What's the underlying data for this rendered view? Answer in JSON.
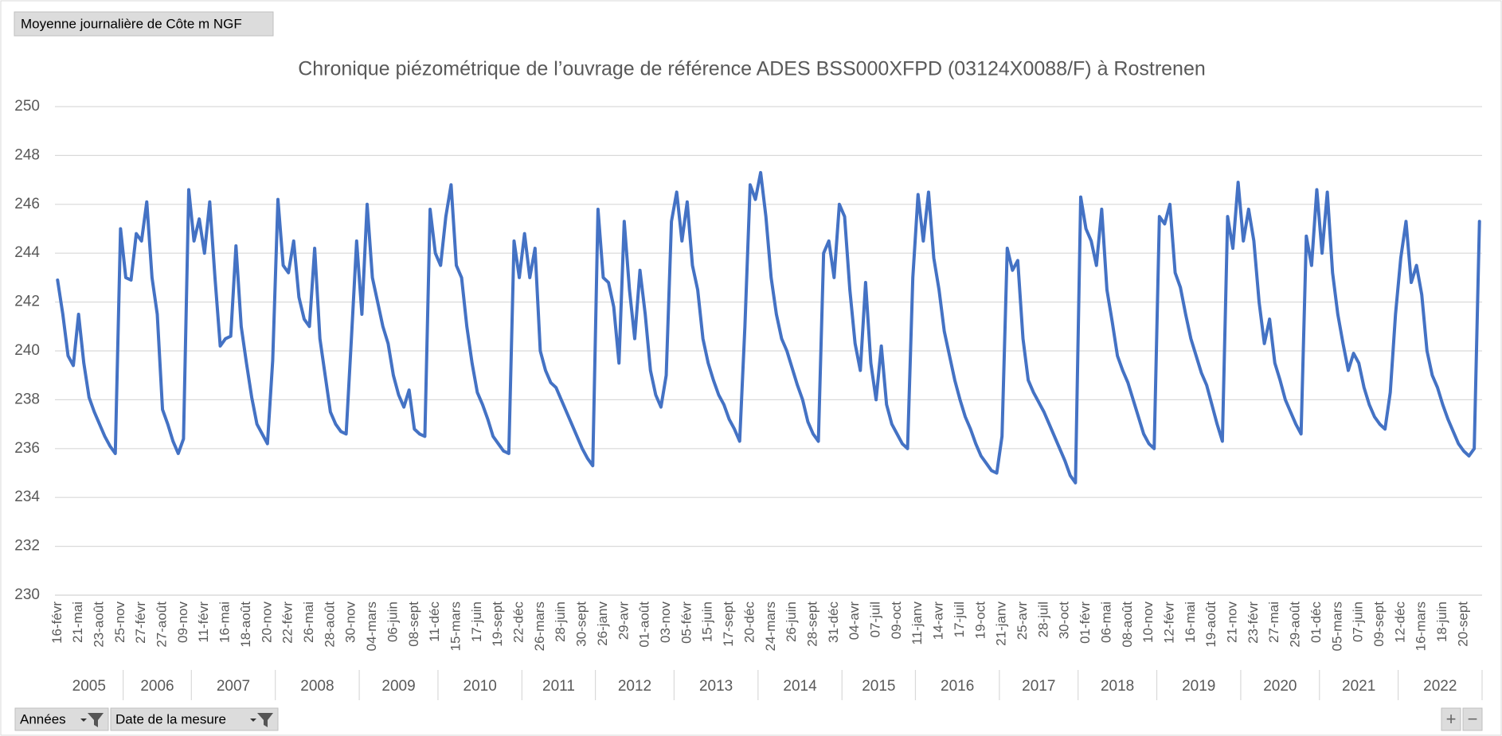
{
  "ui": {
    "field_button": "Moyenne journalière  de Côte m NGF",
    "row_fields": [
      "Années",
      "Date de la mesure"
    ],
    "zoom": [
      "+",
      "−"
    ]
  },
  "chart_data": {
    "type": "line",
    "title": "Chronique piézométrique de l’ouvrage de référence ADES BSS000XFPD (03124X0088/F) à Rostrenen",
    "color": "#4472c4",
    "grid": true,
    "ylim": [
      230,
      250
    ],
    "yticks": [
      230,
      232,
      234,
      236,
      238,
      240,
      242,
      244,
      246,
      248,
      250
    ],
    "categories": [
      "16-févr",
      null,
      null,
      null,
      "21-mai",
      null,
      null,
      null,
      "23-août",
      null,
      null,
      null,
      "25-nov",
      null,
      null,
      null,
      "27-févr",
      null,
      null,
      null,
      "27-août",
      null,
      null,
      null,
      "09-nov",
      null,
      null,
      null,
      "11-févr",
      null,
      null,
      null,
      "16-mai",
      null,
      null,
      null,
      "18-août",
      null,
      null,
      null,
      "20-nov",
      null,
      null,
      null,
      "22-févr",
      null,
      null,
      null,
      "26-mai",
      null,
      null,
      null,
      "28-août",
      null,
      null,
      null,
      "30-nov",
      null,
      null,
      null,
      "04-mars",
      null,
      null,
      null,
      "06-juin",
      null,
      null,
      null,
      "08-sept",
      null,
      null,
      null,
      "11-déc",
      null,
      null,
      null,
      "15-mars",
      null,
      null,
      null,
      "17-juin",
      null,
      null,
      null,
      "19-sept",
      null,
      null,
      null,
      "22-déc",
      null,
      null,
      null,
      "26-mars",
      null,
      null,
      null,
      "28-juin",
      null,
      null,
      null,
      "30-sept",
      null,
      null,
      null,
      "26-janv",
      null,
      null,
      null,
      "29-avr",
      null,
      null,
      null,
      "01-août",
      null,
      null,
      null,
      "03-nov",
      null,
      null,
      null,
      "05-févr",
      null,
      null,
      null,
      "15-juin",
      null,
      null,
      null,
      "17-sept",
      null,
      null,
      null,
      "20-déc",
      null,
      null,
      null,
      "24-mars",
      null,
      null,
      null,
      "26-juin",
      null,
      null,
      null,
      "28-sept",
      null,
      null,
      null,
      "31-déc",
      null,
      null,
      null,
      "04-avr",
      null,
      null,
      null,
      "07-juil",
      null,
      null,
      null,
      "09-oct",
      null,
      null,
      null,
      "11-janv",
      null,
      null,
      null,
      "14-avr",
      null,
      null,
      null,
      "17-juil",
      null,
      null,
      null,
      "19-oct",
      null,
      null,
      null,
      "21-janv",
      null,
      null,
      null,
      "25-avr",
      null,
      null,
      null,
      "28-juil",
      null,
      null,
      null,
      "30-oct",
      null,
      null,
      null,
      "01-févr",
      null,
      null,
      null,
      "06-mai",
      null,
      null,
      null,
      "08-août",
      null,
      null,
      null,
      "10-nov",
      null,
      null,
      null,
      "12-févr",
      null,
      null,
      null,
      "16-mai",
      null,
      null,
      null,
      "19-août",
      null,
      null,
      null,
      "21-nov",
      null,
      null,
      null,
      "23-févr",
      null,
      null,
      null,
      "27-mai",
      null,
      null,
      null,
      "29-août",
      null,
      null,
      null,
      "01-déc",
      null,
      null,
      null,
      "05-mars",
      null,
      null,
      null,
      "07-juin",
      null,
      null,
      null,
      "09-sept",
      null,
      null,
      null,
      "12-déc",
      null,
      null,
      null,
      "16-mars",
      null,
      null,
      null,
      "18-juin",
      null,
      null,
      null,
      "20-sept",
      null,
      null,
      null
    ],
    "year_groups": [
      "2005",
      null,
      null,
      null,
      null,
      null,
      null,
      null,
      null,
      null,
      null,
      null,
      null,
      "2006",
      null,
      null,
      null,
      null,
      null,
      null,
      null,
      null,
      null,
      null,
      null,
      null,
      "2007",
      null,
      null,
      null,
      null,
      null,
      null,
      null,
      null,
      null,
      null,
      null,
      null,
      null,
      null,
      null,
      "2008",
      null,
      null,
      null,
      null,
      null,
      null,
      null,
      null,
      null,
      null,
      null,
      null,
      null,
      null,
      null,
      "2009",
      null,
      null,
      null,
      null,
      null,
      null,
      null,
      null,
      null,
      null,
      null,
      null,
      null,
      null,
      "2010",
      null,
      null,
      null,
      null,
      null,
      null,
      null,
      null,
      null,
      null,
      null,
      null,
      null,
      null,
      null,
      "2011",
      null,
      null,
      null,
      null,
      null,
      null,
      null,
      null,
      null,
      null,
      null,
      null,
      null,
      "2012",
      null,
      null,
      null,
      null,
      null,
      null,
      null,
      null,
      null,
      null,
      null,
      null,
      null,
      null,
      "2013",
      null,
      null,
      null,
      null,
      null,
      null,
      null,
      null,
      null,
      null,
      null,
      null,
      null,
      null,
      null,
      "2014",
      null,
      null,
      null,
      null,
      null,
      null,
      null,
      null,
      null,
      null,
      null,
      null,
      null,
      null,
      null,
      "2015",
      null,
      null,
      null,
      null,
      null,
      null,
      null,
      null,
      null,
      null,
      null,
      null,
      null,
      "2016",
      null,
      null,
      null,
      null,
      null,
      null,
      null,
      null,
      null,
      null,
      null,
      null,
      null,
      null,
      null,
      "2017",
      null,
      null,
      null,
      null,
      null,
      null,
      null,
      null,
      null,
      null,
      null,
      null,
      null,
      null,
      "2018",
      null,
      null,
      null,
      null,
      null,
      null,
      null,
      null,
      null,
      null,
      null,
      null,
      null,
      null,
      "2019",
      null,
      null,
      null,
      null,
      null,
      null,
      null,
      null,
      null,
      null,
      null,
      null,
      null,
      null,
      null,
      "2020",
      null,
      null,
      null,
      null,
      null,
      null,
      null,
      null,
      null,
      null,
      null,
      null,
      null,
      null,
      "2021",
      null,
      null,
      null,
      null,
      null,
      null,
      null,
      null,
      null,
      null,
      null,
      null,
      null,
      null,
      "2022",
      null,
      null,
      null,
      null,
      null,
      null,
      null,
      null,
      null,
      null,
      null,
      null,
      null,
      null,
      null
    ],
    "values": [
      242.9,
      241.5,
      239.8,
      239.4,
      241.5,
      239.5,
      238.1,
      237.5,
      237,
      236.5,
      236.1,
      235.8,
      245,
      243,
      242.9,
      244.8,
      244.5,
      246.1,
      243,
      241.5,
      237.6,
      237,
      236.3,
      235.8,
      236.4,
      246.6,
      244.5,
      245.4,
      244,
      246.1,
      243,
      240.2,
      240.5,
      240.6,
      244.3,
      241,
      239.5,
      238.1,
      237,
      236.6,
      236.2,
      239.6,
      246.2,
      243.5,
      243.2,
      244.5,
      242.2,
      241.3,
      241,
      244.2,
      240.5,
      239,
      237.5,
      237,
      236.7,
      236.6,
      240.5,
      244.5,
      241.5,
      246,
      243,
      242,
      241,
      240.3,
      239,
      238.2,
      237.7,
      238.4,
      236.8,
      236.6,
      236.5,
      245.8,
      244,
      243.5,
      245.5,
      246.8,
      243.5,
      243,
      241,
      239.5,
      238.3,
      237.8,
      237.2,
      236.5,
      236.2,
      235.9,
      235.8,
      244.5,
      243,
      244.8,
      243,
      244.2,
      240,
      239.2,
      238.7,
      238.5,
      238,
      237.5,
      237,
      236.5,
      236,
      235.6,
      235.3,
      245.8,
      243,
      242.8,
      241.8,
      239.5,
      245.3,
      242.5,
      240.5,
      243.3,
      241.5,
      239.2,
      238.2,
      237.7,
      239,
      245.3,
      246.5,
      244.5,
      246.1,
      243.5,
      242.5,
      240.5,
      239.5,
      238.8,
      238.2,
      237.8,
      237.2,
      236.8,
      236.3,
      241,
      246.8,
      246.2,
      247.3,
      245.5,
      243,
      241.5,
      240.5,
      240,
      239.3,
      238.6,
      238,
      237.1,
      236.6,
      236.3,
      244,
      244.5,
      243,
      246,
      245.5,
      242.5,
      240.3,
      239.2,
      242.8,
      239.5,
      238,
      240.2,
      237.8,
      237,
      236.6,
      236.2,
      236,
      243,
      246.4,
      244.5,
      246.5,
      243.8,
      242.5,
      240.8,
      239.8,
      238.8,
      238,
      237.3,
      236.8,
      236.2,
      235.7,
      235.4,
      235.1,
      235,
      236.5,
      244.2,
      243.3,
      243.7,
      240.5,
      238.8,
      238.3,
      237.9,
      237.5,
      237,
      236.5,
      236,
      235.5,
      234.9,
      234.6,
      246.3,
      245,
      244.5,
      243.5,
      245.8,
      242.5,
      241.2,
      239.8,
      239.2,
      238.7,
      238,
      237.3,
      236.6,
      236.2,
      236,
      245.5,
      245.2,
      246,
      243.2,
      242.6,
      241.5,
      240.5,
      239.8,
      239.1,
      238.6,
      237.8,
      237,
      236.3,
      245.5,
      244.2,
      246.9,
      244.5,
      245.8,
      244.5,
      242,
      240.3,
      241.3,
      239.5,
      238.8,
      238,
      237.5,
      237,
      236.6,
      244.7,
      243.5,
      246.6,
      244,
      246.5,
      243.2,
      241.5,
      240.3,
      239.2,
      239.9,
      239.5,
      238.5,
      237.8,
      237.3,
      237,
      236.8,
      238.3,
      241.5,
      243.8,
      245.3,
      242.8,
      243.5,
      242.3,
      240,
      239,
      238.5,
      237.8,
      237.2,
      236.7,
      236.2,
      235.9,
      235.7,
      236,
      245.3
    ]
  }
}
